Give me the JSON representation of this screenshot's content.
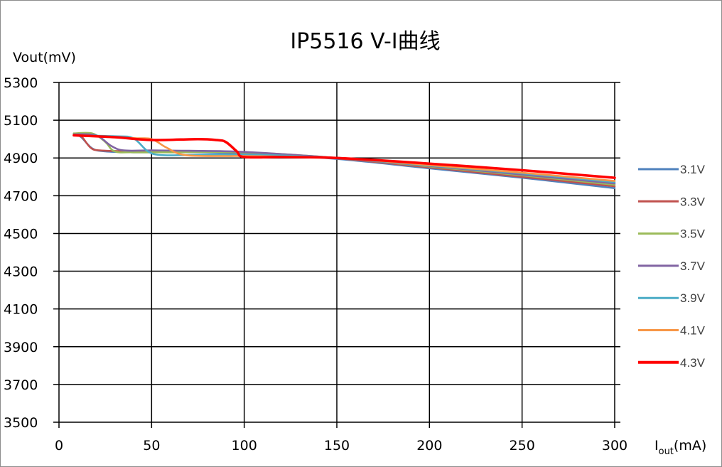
{
  "chart_data": {
    "type": "line",
    "title": "IP5516  V-I曲线",
    "ylabel": "Vout(mV)",
    "xlabel": {
      "main": "I",
      "sub": "out",
      "unit": "(mA)"
    },
    "xlim": [
      0,
      300
    ],
    "ylim": [
      3500,
      5300
    ],
    "xticks": [
      0,
      50,
      100,
      150,
      200,
      250,
      300
    ],
    "yticks": [
      3500,
      3700,
      3900,
      4100,
      4300,
      4500,
      4700,
      4900,
      5100,
      5300
    ],
    "grid": true,
    "legend_position": "right",
    "series": [
      {
        "name": "3.1V",
        "color": "#4f81bd",
        "points": [
          [
            8,
            5030
          ],
          [
            12,
            5010
          ],
          [
            18,
            4950
          ],
          [
            25,
            4935
          ],
          [
            40,
            4930
          ],
          [
            60,
            4930
          ],
          [
            100,
            4925
          ],
          [
            150,
            4895
          ],
          [
            200,
            4845
          ],
          [
            250,
            4795
          ],
          [
            300,
            4740
          ]
        ]
      },
      {
        "name": "3.3V",
        "color": "#c0504d",
        "points": [
          [
            8,
            5025
          ],
          [
            12,
            5015
          ],
          [
            17,
            4955
          ],
          [
            22,
            4940
          ],
          [
            40,
            4935
          ],
          [
            60,
            4935
          ],
          [
            100,
            4928
          ],
          [
            150,
            4898
          ],
          [
            200,
            4850
          ],
          [
            250,
            4800
          ],
          [
            300,
            4750
          ]
        ]
      },
      {
        "name": "3.5V",
        "color": "#9bbb59",
        "points": [
          [
            8,
            5030
          ],
          [
            18,
            5030
          ],
          [
            25,
            4985
          ],
          [
            30,
            4935
          ],
          [
            40,
            4930
          ],
          [
            60,
            4930
          ],
          [
            100,
            4930
          ],
          [
            150,
            4900
          ],
          [
            200,
            4855
          ],
          [
            250,
            4808
          ],
          [
            300,
            4758
          ]
        ]
      },
      {
        "name": "3.7V",
        "color": "#8064a2",
        "points": [
          [
            8,
            5025
          ],
          [
            20,
            5020
          ],
          [
            28,
            4965
          ],
          [
            35,
            4940
          ],
          [
            50,
            4940
          ],
          [
            70,
            4938
          ],
          [
            100,
            4932
          ],
          [
            150,
            4900
          ],
          [
            200,
            4858
          ],
          [
            250,
            4812
          ],
          [
            300,
            4765
          ]
        ]
      },
      {
        "name": "3.9V",
        "color": "#4bacc6",
        "points": [
          [
            8,
            5020
          ],
          [
            30,
            5015
          ],
          [
            40,
            5005
          ],
          [
            48,
            4935
          ],
          [
            55,
            4915
          ],
          [
            70,
            4915
          ],
          [
            100,
            4918
          ],
          [
            150,
            4900
          ],
          [
            200,
            4860
          ],
          [
            250,
            4818
          ],
          [
            300,
            4772
          ]
        ]
      },
      {
        "name": "4.1V",
        "color": "#f79646",
        "points": [
          [
            8,
            5020
          ],
          [
            40,
            5005
          ],
          [
            50,
            5000
          ],
          [
            58,
            4955
          ],
          [
            68,
            4915
          ],
          [
            90,
            4910
          ],
          [
            100,
            4910
          ],
          [
            150,
            4900
          ],
          [
            200,
            4862
          ],
          [
            250,
            4822
          ],
          [
            300,
            4778
          ]
        ]
      },
      {
        "name": "4.3V",
        "color": "#ff0000",
        "points": [
          [
            8,
            5020
          ],
          [
            30,
            5010
          ],
          [
            50,
            4995
          ],
          [
            75,
            5000
          ],
          [
            85,
            4995
          ],
          [
            90,
            4985
          ],
          [
            96,
            4935
          ],
          [
            100,
            4905
          ],
          [
            120,
            4905
          ],
          [
            150,
            4900
          ],
          [
            200,
            4870
          ],
          [
            250,
            4835
          ],
          [
            300,
            4795
          ]
        ]
      }
    ]
  }
}
